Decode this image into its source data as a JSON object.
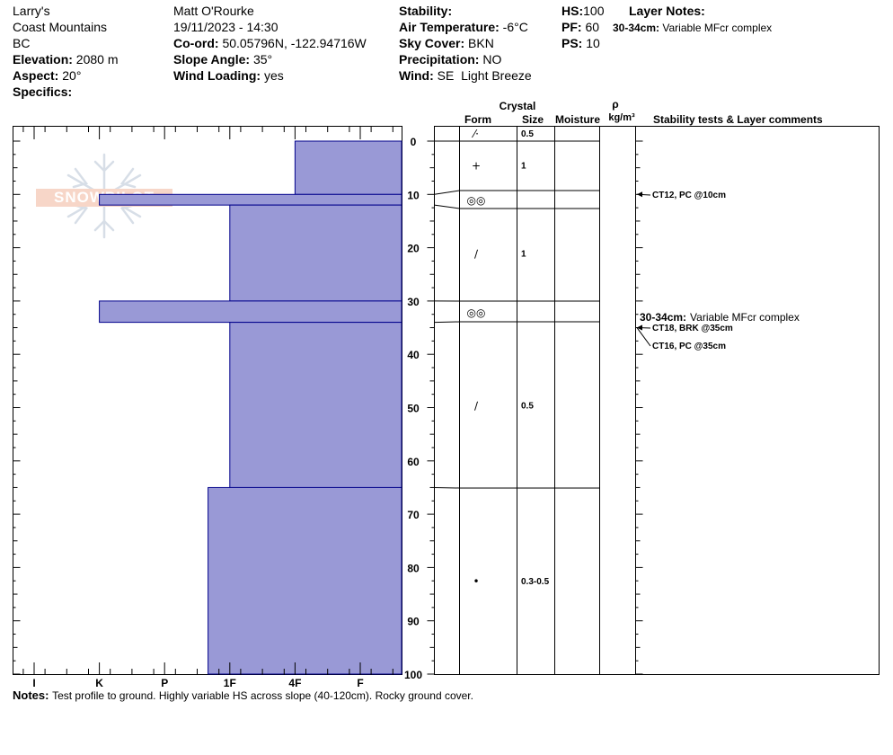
{
  "site": {
    "name": "Larry's",
    "range": "Coast Mountains",
    "province": "BC",
    "elevation_label": "Elevation:",
    "elevation": "2080 m",
    "aspect_label": "Aspect:",
    "aspect": "20°",
    "specifics_label": "Specifics:"
  },
  "observer": {
    "name": "Matt O'Rourke",
    "datetime": "19/11/2023 - 14:30",
    "coord_label": "Co-ord:",
    "coord": "50.05796N, -122.94716W",
    "slope_label": "Slope Angle:",
    "slope": "35°",
    "wind_loading_label": "Wind Loading:",
    "wind_loading": "yes"
  },
  "conditions": {
    "stability_label": "Stability:",
    "air_temp_label": "Air Temperature:",
    "air_temp": "-6°C",
    "sky_label": "Sky Cover:",
    "sky": "BKN",
    "precip_label": "Precipitation:",
    "precip": "NO",
    "wind_label": "Wind:",
    "wind": "SE  Light Breeze"
  },
  "depths": {
    "hs_label": "HS:",
    "hs": "100",
    "pf_label": "PF:",
    "pf": "60",
    "ps_label": "PS:",
    "ps": "10"
  },
  "layer_notes": {
    "title": "Layer Notes:",
    "items": [
      {
        "range": "30-34cm:",
        "text": "Variable MFcr complex"
      }
    ]
  },
  "notes": {
    "label": "Notes:",
    "text": "Test profile to ground. Highly variable HS across slope (40-120cm). Rocky ground cover."
  },
  "chart_data": {
    "type": "bar",
    "colors": {
      "bar_fill": "#9999d6",
      "bar_stroke": "#00008b"
    },
    "hardness_axis": {
      "ticks": [
        "I",
        "K",
        "P",
        "1F",
        "4F",
        "F"
      ]
    },
    "depth_axis": {
      "min": 0,
      "max": 100,
      "ticks": [
        0,
        10,
        20,
        30,
        40,
        50,
        60,
        70,
        80,
        90,
        100
      ]
    },
    "hardness_layers": [
      {
        "top": 0,
        "bottom": 10,
        "hardness": "4F"
      },
      {
        "top": 10,
        "bottom": 12,
        "hardness": "K"
      },
      {
        "top": 12,
        "bottom": 30,
        "hardness": "1F"
      },
      {
        "top": 30,
        "bottom": 34,
        "hardness": "K"
      },
      {
        "top": 34,
        "bottom": 65,
        "hardness": "1F"
      },
      {
        "top": 65,
        "bottom": 100,
        "hardness": "1F-"
      }
    ],
    "columns": {
      "crystal": "Crystal",
      "form": "Form",
      "size": "Size",
      "moisture": "Moisture",
      "rho": "ρ",
      "density_unit": "kg/m³",
      "comments": "Stability tests & Layer comments"
    },
    "layer_boundaries": [
      0,
      10,
      12,
      30,
      34,
      65,
      100
    ],
    "crystals": [
      {
        "depth": -1.5,
        "symbol": "⁄·",
        "size": "0.5"
      },
      {
        "depth": 4.5,
        "symbol": "+",
        "size": "1"
      },
      {
        "depth": 11,
        "symbol": "◎◎",
        "size": ""
      },
      {
        "depth": 21,
        "symbol": "∕",
        "size": "1"
      },
      {
        "depth": 32,
        "symbol": "◎◎",
        "size": ""
      },
      {
        "depth": 49.5,
        "symbol": "∕",
        "size": "0.5"
      },
      {
        "depth": 82.5,
        "symbol": "•",
        "size": "0.3-0.5"
      }
    ],
    "stability_tests": [
      {
        "depth": 10,
        "text": "CT12, PC @10cm"
      },
      {
        "depth": 35,
        "text": "CT18, BRK @35cm"
      },
      {
        "depth": 35,
        "text": "CT16, PC @35cm"
      }
    ]
  }
}
